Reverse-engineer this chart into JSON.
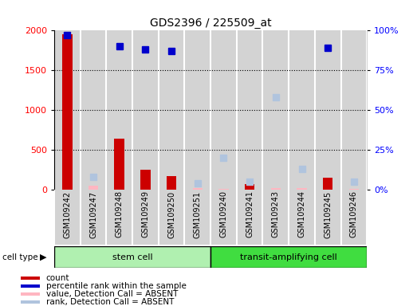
{
  "title": "GDS2396 / 225509_at",
  "samples": [
    "GSM109242",
    "GSM109247",
    "GSM109248",
    "GSM109249",
    "GSM109250",
    "GSM109251",
    "GSM109240",
    "GSM109241",
    "GSM109243",
    "GSM109244",
    "GSM109245",
    "GSM109246"
  ],
  "count_values": [
    1950,
    50,
    640,
    250,
    175,
    20,
    15,
    70,
    20,
    25,
    155,
    15
  ],
  "count_absent": [
    false,
    true,
    false,
    false,
    false,
    true,
    true,
    false,
    true,
    true,
    false,
    true
  ],
  "percentile_values": [
    97,
    null,
    90,
    88,
    87,
    null,
    null,
    null,
    null,
    null,
    89,
    null
  ],
  "rank_absent_values": [
    null,
    8,
    null,
    null,
    null,
    4,
    20,
    5,
    58,
    13,
    null,
    5
  ],
  "ylim_left": [
    0,
    2000
  ],
  "ylim_right": [
    0,
    100
  ],
  "yticks_left": [
    0,
    500,
    1000,
    1500,
    2000
  ],
  "yticks_right": [
    0,
    25,
    50,
    75,
    100
  ],
  "ytick_labels_right": [
    "0%",
    "25%",
    "50%",
    "75%",
    "100%"
  ],
  "stem_cell_color": "#b0f0b0",
  "transit_cell_color": "#40dd40",
  "bar_bg_color": "#D3D3D3",
  "count_color": "#CC0000",
  "percentile_color": "#0000CC",
  "count_absent_color": "#FFB6C1",
  "rank_absent_color": "#B0C4DE",
  "n_stem": 6,
  "n_transit": 6
}
